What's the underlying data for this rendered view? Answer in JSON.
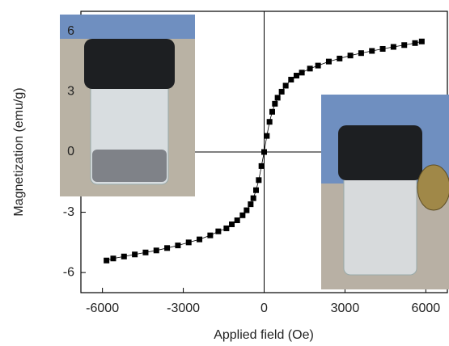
{
  "chart_data": {
    "type": "line",
    "x_label": "Applied field (Oe)",
    "y_label": "Magnetization (emu/g)",
    "x": [
      -5850,
      -5600,
      -5200,
      -4800,
      -4400,
      -4000,
      -3600,
      -3200,
      -2800,
      -2400,
      -2000,
      -1700,
      -1400,
      -1200,
      -1000,
      -800,
      -650,
      -500,
      -400,
      -300,
      -200,
      -100,
      0,
      100,
      200,
      300,
      400,
      500,
      650,
      800,
      1000,
      1200,
      1400,
      1700,
      2000,
      2400,
      2800,
      3200,
      3600,
      4000,
      4400,
      4800,
      5200,
      5600,
      5850
    ],
    "series": [
      {
        "color": "#000000",
        "values": [
          -5.4,
          -5.3,
          -5.2,
          -5.1,
          -5.0,
          -4.9,
          -4.78,
          -4.65,
          -4.5,
          -4.35,
          -4.15,
          -3.95,
          -3.8,
          -3.6,
          -3.4,
          -3.15,
          -2.9,
          -2.6,
          -2.3,
          -1.9,
          -1.4,
          -0.7,
          0,
          0.8,
          1.5,
          2.0,
          2.4,
          2.7,
          3.0,
          3.3,
          3.6,
          3.8,
          3.95,
          4.15,
          4.3,
          4.5,
          4.65,
          4.8,
          4.92,
          5.03,
          5.13,
          5.23,
          5.32,
          5.42,
          5.5
        ]
      }
    ],
    "xlim": [
      -6800,
      6800
    ],
    "xticks": [
      -6000,
      -3000,
      0,
      3000,
      6000
    ],
    "ylim": [
      -7,
      7
    ],
    "yticks": [
      -6,
      -3,
      0,
      3,
      6
    ],
    "zero_lines": true
  }
}
